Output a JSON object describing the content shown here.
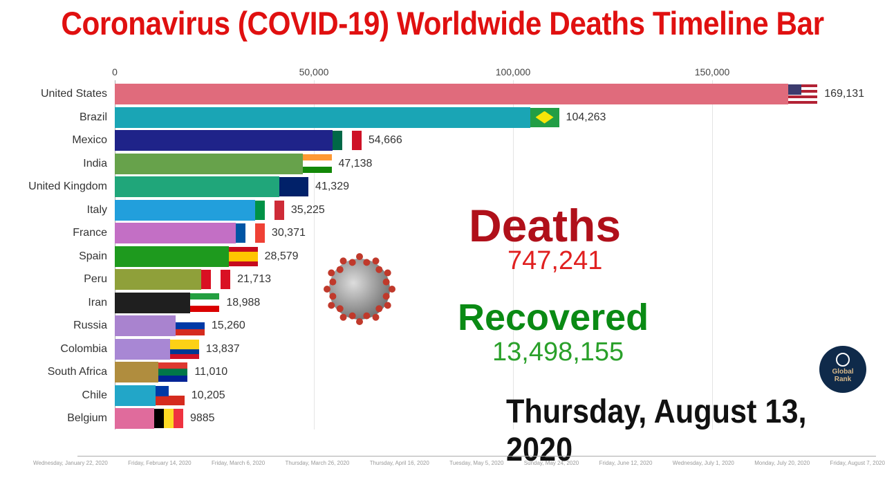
{
  "chart_data": {
    "type": "bar",
    "orientation": "horizontal",
    "title": "Coronavirus (COVID-19) Worldwide Deaths Timeline Bar",
    "xlim": [
      0,
      175000
    ],
    "xticks": [
      "0",
      "50,000",
      "100,000",
      "150,000"
    ],
    "xtick_values": [
      0,
      50000,
      100000,
      150000
    ],
    "grid": true,
    "categories": [
      "United States",
      "Brazil",
      "Mexico",
      "India",
      "United Kingdom",
      "Italy",
      "France",
      "Spain",
      "Peru",
      "Iran",
      "Russia",
      "Colombia",
      "South Africa",
      "Chile",
      "Belgium"
    ],
    "values": [
      169131,
      104263,
      54666,
      47138,
      41329,
      35225,
      30371,
      28579,
      21713,
      18988,
      15260,
      13837,
      11010,
      10205,
      9885
    ],
    "value_labels": [
      "169,131",
      "104,263",
      "54,666",
      "47,138",
      "41,329",
      "35,225",
      "30,371",
      "28,579",
      "21,713",
      "18,988",
      "15,260",
      "13,837",
      "11,010",
      "10,205",
      "9885"
    ],
    "colors": [
      "#e06b7c",
      "#1aa5b5",
      "#1f2389",
      "#67a24b",
      "#20a67a",
      "#229fdc",
      "#c36fc5",
      "#1e9a1e",
      "#8fa03a",
      "#1f1f1f",
      "#a983cf",
      "#a887d4",
      "#b08d3e",
      "#22a6c8",
      "#e06b9c"
    ],
    "flags": [
      "flag-us",
      "flag-br",
      "flag-mx",
      "flag-in",
      "flag-gb",
      "flag-it",
      "flag-fr",
      "flag-es",
      "flag-pe",
      "flag-ir",
      "flag-ru",
      "flag-co",
      "flag-za",
      "flag-cl",
      "flag-be"
    ]
  },
  "stats": {
    "deaths_label": "Deaths",
    "deaths_value": "747,241",
    "recovered_label": "Recovered",
    "recovered_value": "13,498,155",
    "date": "Thursday, August 13, 2020"
  },
  "logo": {
    "line1": "Global",
    "line2": "Rank"
  },
  "timeline": {
    "labels": [
      "Wednesday, January 22, 2020",
      "Friday, February 14, 2020",
      "Friday, March 6, 2020",
      "Thursday, March 26, 2020",
      "Thursday, April 16, 2020",
      "Tuesday, May 5, 2020",
      "Sunday, May 24, 2020",
      "Friday, June 12, 2020",
      "Wednesday, July 1, 2020",
      "Monday, July 20, 2020",
      "Friday, August 7, 2020"
    ],
    "progress": 1.0
  }
}
